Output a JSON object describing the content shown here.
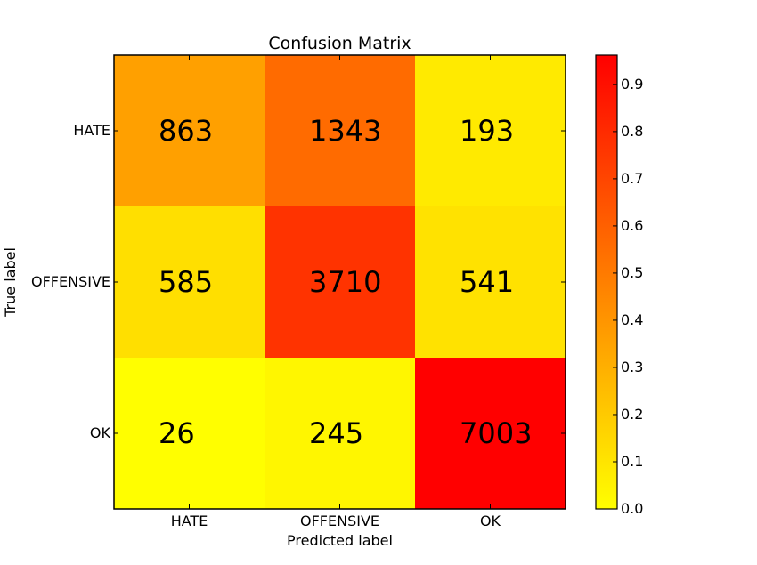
{
  "chart_data": {
    "type": "heatmap",
    "title": "Confusion Matrix",
    "xlabel": "Predicted label",
    "ylabel": "True label",
    "x_categories": [
      "HATE",
      "OFFENSIVE",
      "OK"
    ],
    "y_categories": [
      "HATE",
      "OFFENSIVE",
      "OK"
    ],
    "values": [
      [
        863,
        1343,
        193
      ],
      [
        585,
        3710,
        541
      ],
      [
        26,
        245,
        7003
      ]
    ],
    "normalized": [
      [
        0.36,
        0.56,
        0.08
      ],
      [
        0.12,
        0.77,
        0.11
      ],
      [
        0.004,
        0.034,
        0.962
      ]
    ],
    "colormap": "autumn_r",
    "colorbar": {
      "range": [
        0.0,
        0.962
      ],
      "ticks": [
        "0.0",
        "0.1",
        "0.2",
        "0.3",
        "0.4",
        "0.5",
        "0.6",
        "0.7",
        "0.8",
        "0.9"
      ],
      "tick_values": [
        0.0,
        0.1,
        0.2,
        0.3,
        0.4,
        0.5,
        0.6,
        0.7,
        0.8,
        0.9
      ],
      "colors": {
        "low": "#ffff00",
        "high": "#ff0000"
      }
    },
    "grid": false
  }
}
